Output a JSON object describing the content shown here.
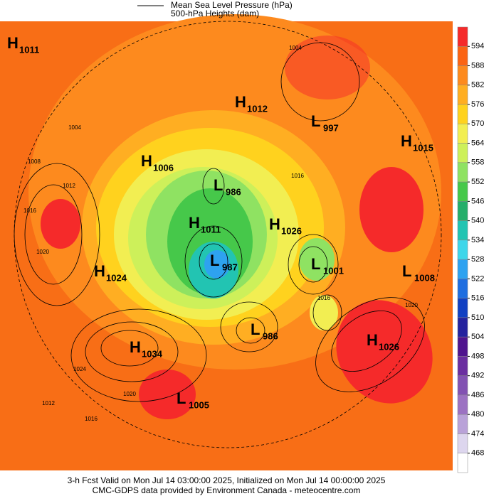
{
  "legend": {
    "items": [
      {
        "label": "Mean Sea Level Pressure (hPa)"
      },
      {
        "label": "500-hPa Heights (dam)"
      }
    ]
  },
  "colorbar": {
    "ticks": [
      594,
      588,
      582,
      576,
      570,
      564,
      558,
      552,
      546,
      540,
      534,
      528,
      522,
      516,
      510,
      504,
      498,
      492,
      486,
      480,
      474,
      468
    ],
    "colors": [
      "#f52a2a",
      "#fb6414",
      "#fd8a1e",
      "#ffae22",
      "#ffd21e",
      "#f2ee52",
      "#cdf05a",
      "#8fe262",
      "#46c84a",
      "#25ae6a",
      "#22c4b2",
      "#3ed6ea",
      "#2ea2f0",
      "#1f6ee0",
      "#1140c2",
      "#24229e",
      "#4f148e",
      "#6a2ea0",
      "#8252b2",
      "#9c72c2",
      "#b9a2d8",
      "#ddd6ee",
      "#ffffff"
    ]
  },
  "map": {
    "centers": [
      {
        "type": "H",
        "value": 1011
      },
      {
        "type": "H",
        "value": 1012
      },
      {
        "type": "L",
        "value": 997
      },
      {
        "type": "H",
        "value": 1015
      },
      {
        "type": "H",
        "value": 1006
      },
      {
        "type": "L",
        "value": 986
      },
      {
        "type": "H",
        "value": 1011
      },
      {
        "type": "H",
        "value": 1026
      },
      {
        "type": "L",
        "value": 987
      },
      {
        "type": "L",
        "value": 1001
      },
      {
        "type": "L",
        "value": 1008
      },
      {
        "type": "H",
        "value": 1024
      },
      {
        "type": "L",
        "value": 986
      },
      {
        "type": "H",
        "value": 1026
      },
      {
        "type": "H",
        "value": 1034
      },
      {
        "type": "L",
        "value": 1005
      }
    ],
    "contour_labels": [
      1004,
      1004,
      1008,
      1012,
      1016,
      1020,
      1024,
      1020,
      1012,
      1016,
      1016,
      1016,
      1020
    ]
  },
  "footer": {
    "lines": [
      "3-h Fcst Valid on Mon Jul 14 03:00:00 2025, Initialized on Mon Jul 14 00:00:00 2025",
      "CMC-GDPS data provided by Environment Canada - meteocentre.com"
    ]
  }
}
